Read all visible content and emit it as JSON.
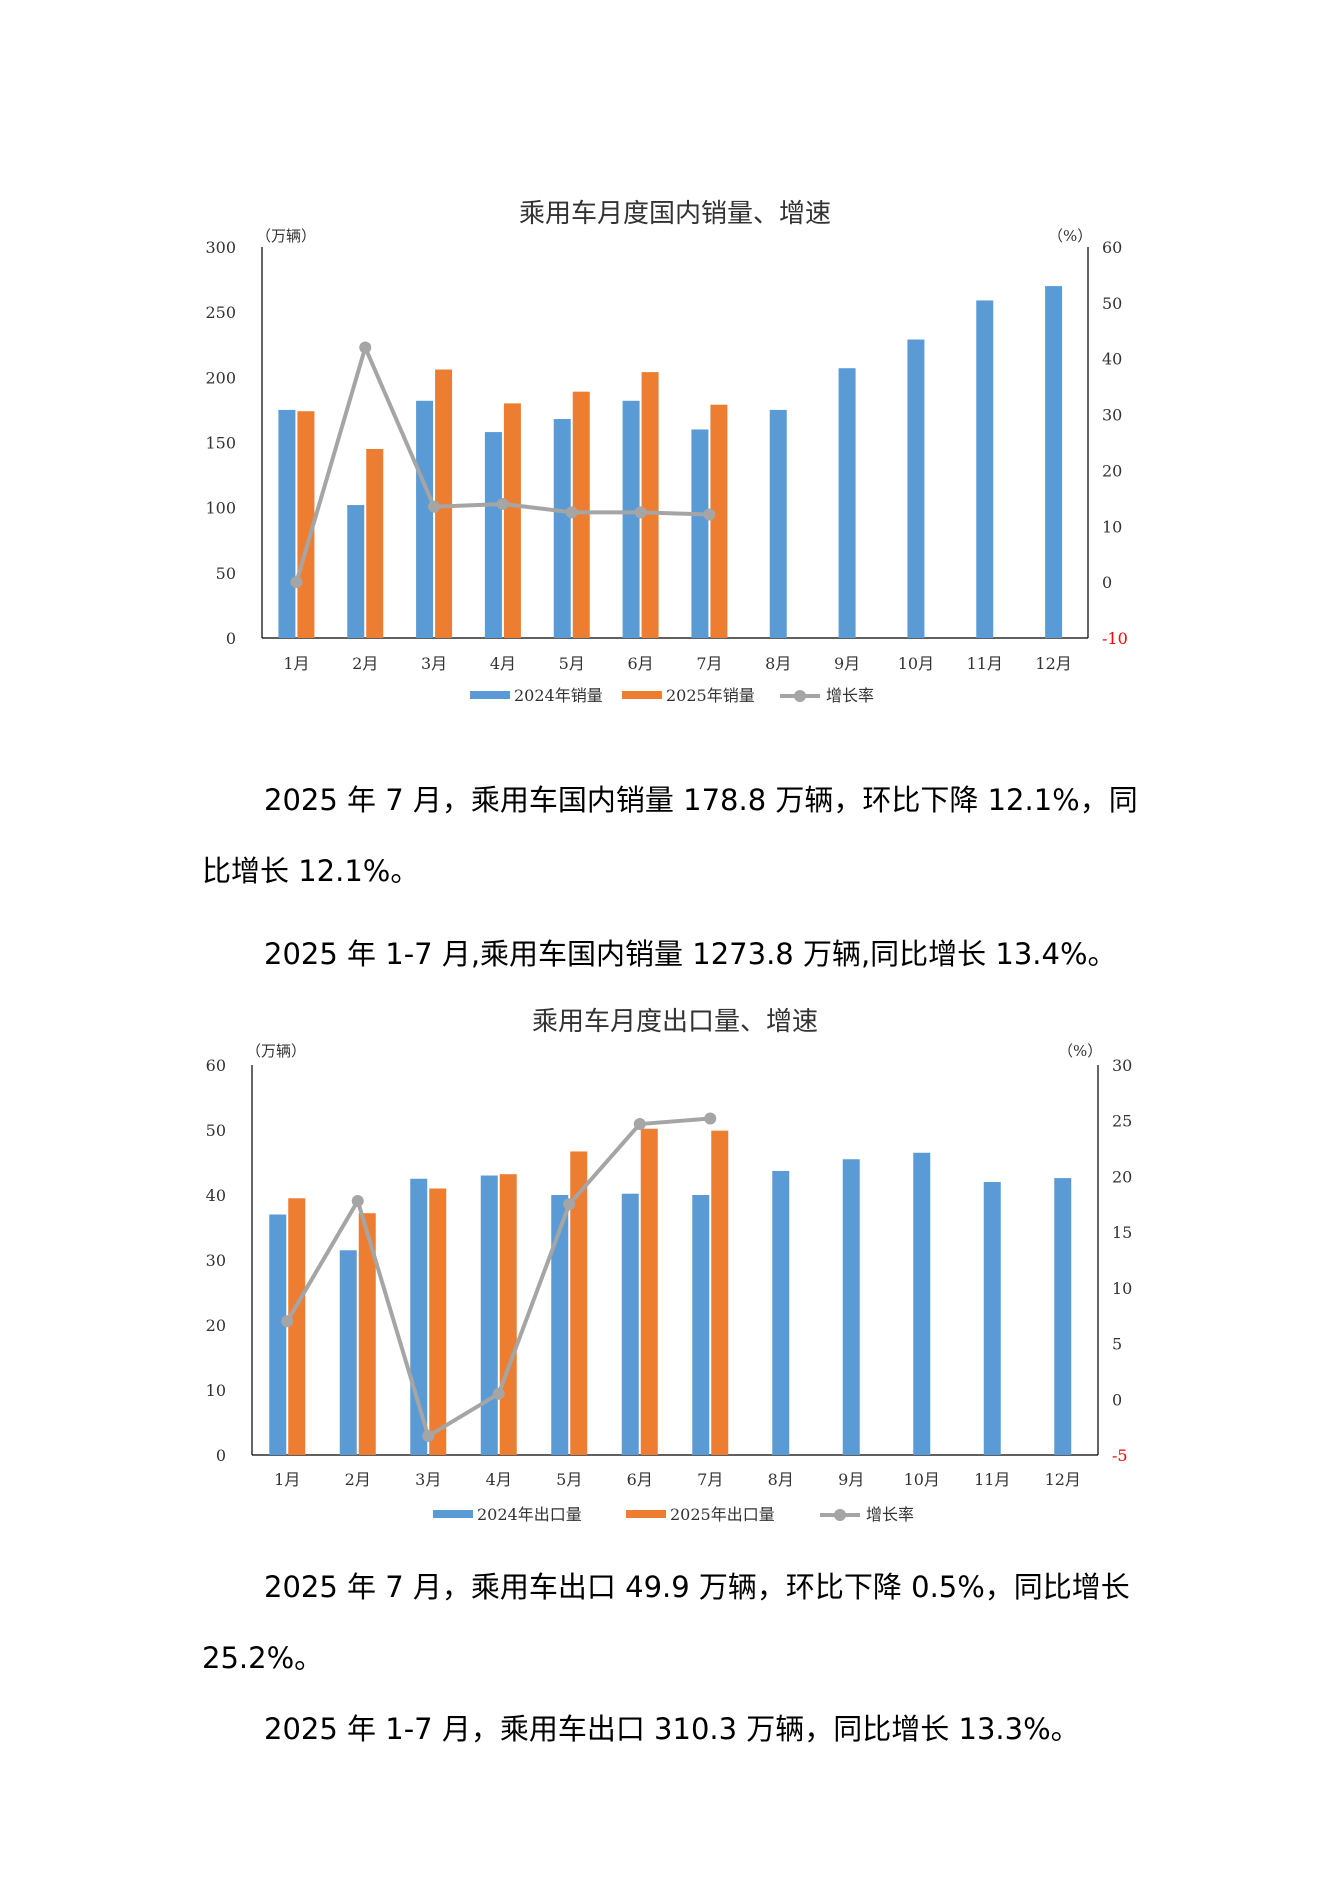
{
  "colors": {
    "series_2024": "#5b9bd5",
    "series_2025": "#ed7d31",
    "growth": "#a5a5a5",
    "negative_tick": "#ff0000",
    "axis": "#000000"
  },
  "chart_data": [
    {
      "type": "bar",
      "title": "乘用车月度国内销量、增速",
      "left_unit": "（万辆）",
      "right_unit": "（%）",
      "categories": [
        "1月",
        "2月",
        "3月",
        "4月",
        "5月",
        "6月",
        "7月",
        "8月",
        "9月",
        "10月",
        "11月",
        "12月"
      ],
      "ylim": [
        0,
        300
      ],
      "y_ticks": [
        0,
        50,
        100,
        150,
        200,
        250,
        300
      ],
      "y2lim": [
        -10,
        60
      ],
      "y2_ticks": [
        -10,
        0,
        10,
        20,
        30,
        40,
        50,
        60
      ],
      "grid": false,
      "legend_position": "bottom",
      "series": [
        {
          "name": "2024年销量",
          "kind": "bar",
          "axis": "left",
          "values": [
            175,
            102,
            182,
            158,
            168,
            182,
            160,
            175,
            207,
            229,
            259,
            270
          ]
        },
        {
          "name": "2025年销量",
          "kind": "bar",
          "axis": "left",
          "values": [
            174,
            145,
            206,
            180,
            189,
            204,
            179,
            null,
            null,
            null,
            null,
            null
          ]
        },
        {
          "name": "增长率",
          "kind": "line",
          "axis": "right",
          "values": [
            0,
            42,
            13.5,
            14,
            12.5,
            12.5,
            12.1,
            null,
            null,
            null,
            null,
            null
          ]
        }
      ]
    },
    {
      "type": "bar",
      "title": "乘用车月度出口量、增速",
      "left_unit": "（万辆）",
      "right_unit": "（%）",
      "categories": [
        "1月",
        "2月",
        "3月",
        "4月",
        "5月",
        "6月",
        "7月",
        "8月",
        "9月",
        "10月",
        "11月",
        "12月"
      ],
      "ylim": [
        0,
        60
      ],
      "y_ticks": [
        0,
        10,
        20,
        30,
        40,
        50,
        60
      ],
      "y2lim": [
        -5,
        30
      ],
      "y2_ticks": [
        -5,
        0,
        5,
        10,
        15,
        20,
        25,
        30
      ],
      "grid": false,
      "legend_position": "bottom",
      "series": [
        {
          "name": "2024年出口量",
          "kind": "bar",
          "axis": "left",
          "values": [
            37,
            31.5,
            42.5,
            43,
            40,
            40.2,
            40,
            43.7,
            45.5,
            46.5,
            42,
            42.6
          ]
        },
        {
          "name": "2025年出口量",
          "kind": "bar",
          "axis": "left",
          "values": [
            39.5,
            37.2,
            41,
            43.2,
            46.7,
            50.2,
            49.9,
            null,
            null,
            null,
            null,
            null
          ]
        },
        {
          "name": "增长率",
          "kind": "line",
          "axis": "right",
          "values": [
            7,
            17.8,
            -3.3,
            0.5,
            17.5,
            24.7,
            25.2,
            null,
            null,
            null,
            null,
            null
          ]
        }
      ]
    }
  ],
  "paragraphs": {
    "p1": "2025 年 7 月，乘用车国内销量 178.8 万辆，环比下降 12.1%，同比增长 12.1%。",
    "p2": "2025 年 1-7 月,乘用车国内销量 1273.8 万辆,同比增长 13.4%。",
    "p3": "2025 年 7 月，乘用车出口 49.9 万辆，环比下降 0.5%，同比增长 25.2%。",
    "p4": "2025 年 1-7 月，乘用车出口 310.3 万辆，同比增长 13.3%。"
  }
}
